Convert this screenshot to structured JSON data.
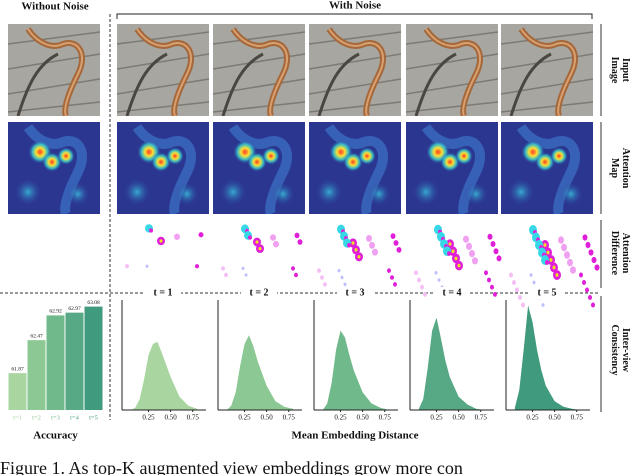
{
  "header": {
    "left": "Without Noise",
    "right": "With Noise"
  },
  "row_labels": [
    [
      "Input",
      "Image"
    ],
    [
      "Attention",
      "Map"
    ],
    [
      "Attention",
      "Difference"
    ],
    [
      "Inter-view",
      "Consistency"
    ]
  ],
  "column_labels": [
    "t = 1",
    "t = 2",
    "t = 3",
    "t = 4",
    "t = 5"
  ],
  "chart_data": [
    {
      "type": "bar",
      "xlabel": "Accuracy",
      "categories": [
        "t=1",
        "t=2",
        "t=3",
        "t=4",
        "t=5"
      ],
      "values": [
        61.87,
        62.47,
        62.92,
        62.97,
        63.08
      ],
      "colors": [
        "#a9d6a0",
        "#8cc893",
        "#6fb98a",
        "#56a984",
        "#3f9a7e"
      ],
      "ylim": [
        61.2,
        63.2
      ]
    },
    {
      "type": "area",
      "xlabel": "Mean Embedding Distance",
      "x": [
        0.05,
        0.1,
        0.15,
        0.2,
        0.25,
        0.3,
        0.35,
        0.4,
        0.5,
        0.6,
        0.7,
        0.8
      ],
      "xlim": [
        -0.05,
        0.9
      ],
      "xticks": [
        0.25,
        {
          "value": 0.5,
          "label": "0.50"
        },
        0.75
      ],
      "ylim": [
        0,
        1
      ],
      "series": [
        {
          "color": "#a9d6a0",
          "values": [
            0,
            0.02,
            0.1,
            0.28,
            0.5,
            0.6,
            0.62,
            0.52,
            0.3,
            0.12,
            0.04,
            0.01
          ]
        },
        {
          "color": "#8cc893",
          "values": [
            0,
            0.04,
            0.16,
            0.4,
            0.6,
            0.68,
            0.58,
            0.44,
            0.22,
            0.08,
            0.03,
            0.01
          ]
        },
        {
          "color": "#6fb98a",
          "values": [
            0,
            0.06,
            0.25,
            0.55,
            0.72,
            0.66,
            0.5,
            0.36,
            0.16,
            0.06,
            0.02,
            0
          ]
        },
        {
          "color": "#56a984",
          "values": [
            0.01,
            0.1,
            0.38,
            0.72,
            0.84,
            0.65,
            0.45,
            0.3,
            0.12,
            0.05,
            0.01,
            0
          ]
        },
        {
          "color": "#3f9a7e",
          "values": [
            0.02,
            0.18,
            0.55,
            0.95,
            0.8,
            0.55,
            0.36,
            0.22,
            0.08,
            0.03,
            0.01,
            0
          ]
        }
      ]
    }
  ],
  "caption": "Figure 1. As top-K augmented view embeddings grow more con"
}
